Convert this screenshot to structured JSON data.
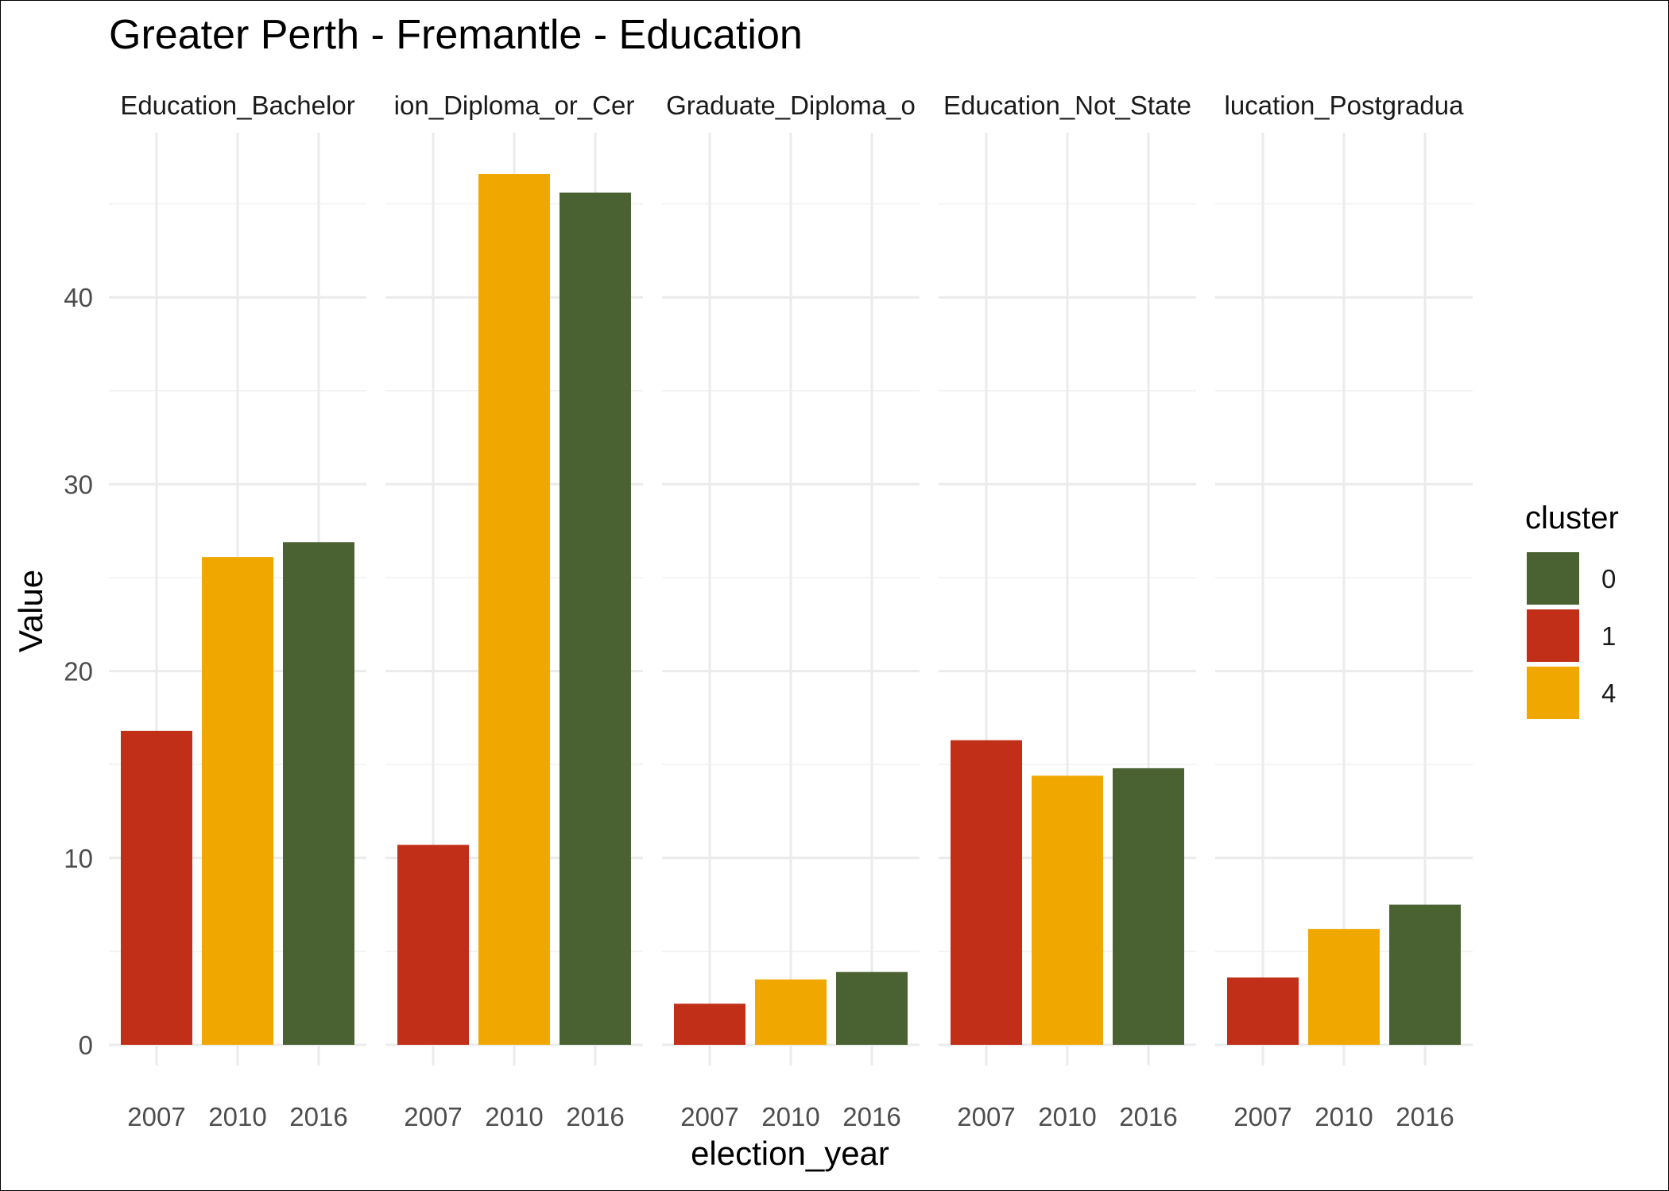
{
  "chart_data": {
    "type": "bar",
    "title": "Greater Perth - Fremantle - Education",
    "xlabel": "election_year",
    "ylabel": "Value",
    "ylim": [
      0,
      48
    ],
    "yticks": [
      0,
      10,
      20,
      30,
      40
    ],
    "categories": [
      "2007",
      "2010",
      "2016"
    ],
    "facets": [
      {
        "label": "Education_Bachelor",
        "values": [
          16.8,
          26.1,
          26.9
        ]
      },
      {
        "label": "ion_Diploma_or_Cer",
        "values": [
          10.7,
          46.6,
          45.6
        ]
      },
      {
        "label": "Graduate_Diploma_o",
        "values": [
          2.2,
          3.5,
          3.9
        ]
      },
      {
        "label": "Education_Not_State",
        "values": [
          16.3,
          14.4,
          14.8
        ]
      },
      {
        "label": "lucation_Postgradua",
        "values": [
          3.6,
          6.2,
          7.5
        ]
      }
    ],
    "bar_cluster": [
      "1",
      "4",
      "0"
    ],
    "legend": {
      "title": "cluster",
      "placement": "right",
      "items": [
        {
          "label": "0",
          "color": "#4a6131"
        },
        {
          "label": "1",
          "color": "#c22f19"
        },
        {
          "label": "4",
          "color": "#f0a800"
        }
      ]
    },
    "grid": true
  }
}
